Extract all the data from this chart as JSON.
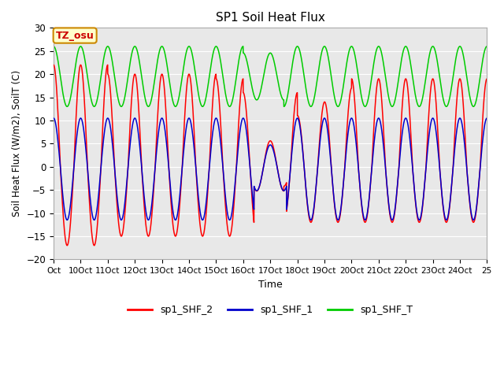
{
  "title": "SP1 Soil Heat Flux",
  "xlabel": "Time",
  "ylabel": "Soil Heat Flux (W/m2), SoilT (C)",
  "ylim": [
    -20,
    30
  ],
  "xlim": [
    0,
    16
  ],
  "xtick_labels": [
    "Oct",
    "10Oct",
    "11Oct",
    "12Oct",
    "13Oct",
    "14Oct",
    "15Oct",
    "16Oct",
    "17Oct",
    "18Oct",
    "19Oct",
    "20Oct",
    "21Oct",
    "22Oct",
    "23Oct",
    "24Oct",
    "25"
  ],
  "xtick_positions": [
    0,
    1,
    2,
    3,
    4,
    5,
    6,
    7,
    8,
    9,
    10,
    11,
    12,
    13,
    14,
    15,
    16
  ],
  "bg_color": "#e8e8e8",
  "line_colors": {
    "sp1_SHF_2": "#ff0000",
    "sp1_SHF_1": "#0000cc",
    "sp1_SHF_T": "#00cc00"
  },
  "annotation_text": "TZ_osu",
  "annotation_bg": "#ffffcc",
  "annotation_border": "#cc8800",
  "figsize": [
    6.4,
    4.8
  ],
  "dpi": 100
}
